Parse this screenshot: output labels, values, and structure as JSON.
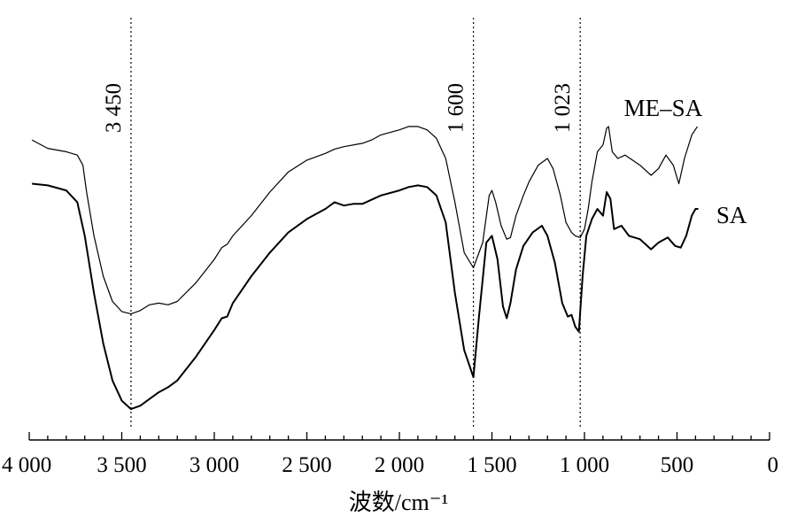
{
  "chart_data": {
    "type": "line",
    "title": "",
    "xlabel": "波数/cm⁻¹",
    "ylabel": "",
    "xlim": [
      4000,
      0
    ],
    "x_reversed": true,
    "x_ticks": [
      4000,
      3500,
      3000,
      2500,
      2000,
      1500,
      1000,
      500,
      0
    ],
    "x_tick_labels": [
      "4 000",
      "3 500",
      "3 000",
      "2 500",
      "2 000",
      "1 500",
      "1 000",
      "500",
      "0"
    ],
    "ylim": [
      0,
      100
    ],
    "y_axis_visible": false,
    "grid": false,
    "legend": "none",
    "annotations": [
      {
        "x": 3450,
        "label": "3 450"
      },
      {
        "x": 1600,
        "label": "1 600"
      },
      {
        "x": 1023,
        "label": "1 023"
      }
    ],
    "series": [
      {
        "name": "ME–SA",
        "label_anchor_x": 640,
        "points": [
          [
            3985,
            80.5
          ],
          [
            3900,
            78
          ],
          [
            3800,
            77
          ],
          [
            3740,
            76
          ],
          [
            3710,
            73
          ],
          [
            3690,
            65
          ],
          [
            3650,
            52
          ],
          [
            3600,
            40
          ],
          [
            3550,
            32.5
          ],
          [
            3500,
            29.5
          ],
          [
            3450,
            28.8
          ],
          [
            3400,
            29.8
          ],
          [
            3350,
            31.5
          ],
          [
            3300,
            32
          ],
          [
            3250,
            31.5
          ],
          [
            3200,
            32.5
          ],
          [
            3100,
            38
          ],
          [
            3000,
            45
          ],
          [
            2960,
            48.5
          ],
          [
            2930,
            49.5
          ],
          [
            2900,
            52
          ],
          [
            2800,
            58
          ],
          [
            2700,
            65
          ],
          [
            2600,
            71
          ],
          [
            2500,
            74.5
          ],
          [
            2400,
            76.5
          ],
          [
            2350,
            77.8
          ],
          [
            2300,
            78.5
          ],
          [
            2200,
            79.5
          ],
          [
            2150,
            80.5
          ],
          [
            2100,
            82
          ],
          [
            2000,
            83.5
          ],
          [
            1950,
            84.5
          ],
          [
            1900,
            84.5
          ],
          [
            1850,
            83.5
          ],
          [
            1800,
            81
          ],
          [
            1750,
            75
          ],
          [
            1700,
            62
          ],
          [
            1650,
            47
          ],
          [
            1600,
            42.5
          ],
          [
            1550,
            50
          ],
          [
            1515,
            64
          ],
          [
            1500,
            65.5
          ],
          [
            1480,
            62
          ],
          [
            1450,
            55
          ],
          [
            1420,
            51
          ],
          [
            1400,
            51.5
          ],
          [
            1370,
            58
          ],
          [
            1330,
            64
          ],
          [
            1300,
            68
          ],
          [
            1250,
            73
          ],
          [
            1200,
            75
          ],
          [
            1170,
            72
          ],
          [
            1130,
            64
          ],
          [
            1100,
            56
          ],
          [
            1070,
            53
          ],
          [
            1050,
            52
          ],
          [
            1023,
            51.5
          ],
          [
            1000,
            54
          ],
          [
            980,
            60
          ],
          [
            960,
            68
          ],
          [
            930,
            77
          ],
          [
            900,
            79
          ],
          [
            880,
            84
          ],
          [
            870,
            84.5
          ],
          [
            850,
            77
          ],
          [
            820,
            75
          ],
          [
            780,
            76
          ],
          [
            700,
            73
          ],
          [
            640,
            70
          ],
          [
            600,
            72
          ],
          [
            560,
            76
          ],
          [
            520,
            73
          ],
          [
            490,
            67.5
          ],
          [
            460,
            75
          ],
          [
            420,
            82
          ],
          [
            390,
            84.5
          ]
        ]
      },
      {
        "name": "SA",
        "label_anchor_x": 400,
        "points": [
          [
            3985,
            67.5
          ],
          [
            3900,
            67
          ],
          [
            3800,
            65.5
          ],
          [
            3740,
            62
          ],
          [
            3700,
            52
          ],
          [
            3650,
            35
          ],
          [
            3600,
            20
          ],
          [
            3550,
            9
          ],
          [
            3500,
            3
          ],
          [
            3450,
            0.5
          ],
          [
            3400,
            1.5
          ],
          [
            3350,
            3.5
          ],
          [
            3300,
            5.5
          ],
          [
            3250,
            7
          ],
          [
            3200,
            9
          ],
          [
            3100,
            16
          ],
          [
            3000,
            24
          ],
          [
            2960,
            27.5
          ],
          [
            2930,
            28
          ],
          [
            2900,
            32
          ],
          [
            2800,
            40
          ],
          [
            2700,
            47
          ],
          [
            2600,
            53
          ],
          [
            2500,
            57
          ],
          [
            2400,
            60
          ],
          [
            2350,
            62
          ],
          [
            2300,
            61
          ],
          [
            2250,
            61.5
          ],
          [
            2200,
            61.5
          ],
          [
            2100,
            64
          ],
          [
            2000,
            65.5
          ],
          [
            1950,
            66.5
          ],
          [
            1900,
            67
          ],
          [
            1850,
            66.5
          ],
          [
            1800,
            64
          ],
          [
            1750,
            56
          ],
          [
            1700,
            35
          ],
          [
            1650,
            18
          ],
          [
            1600,
            10
          ],
          [
            1570,
            28
          ],
          [
            1530,
            50
          ],
          [
            1500,
            52
          ],
          [
            1470,
            45
          ],
          [
            1440,
            31
          ],
          [
            1420,
            27.5
          ],
          [
            1400,
            32
          ],
          [
            1370,
            42
          ],
          [
            1330,
            49
          ],
          [
            1280,
            53
          ],
          [
            1230,
            55
          ],
          [
            1200,
            52
          ],
          [
            1160,
            44
          ],
          [
            1120,
            32
          ],
          [
            1090,
            28
          ],
          [
            1070,
            28.5
          ],
          [
            1050,
            25
          ],
          [
            1030,
            23.5
          ],
          [
            1010,
            40
          ],
          [
            990,
            52
          ],
          [
            960,
            57
          ],
          [
            930,
            60
          ],
          [
            900,
            58
          ],
          [
            880,
            65
          ],
          [
            860,
            63
          ],
          [
            840,
            54
          ],
          [
            800,
            55
          ],
          [
            760,
            52
          ],
          [
            700,
            51
          ],
          [
            640,
            48
          ],
          [
            600,
            50
          ],
          [
            550,
            51.5
          ],
          [
            510,
            49
          ],
          [
            480,
            48.5
          ],
          [
            450,
            52
          ],
          [
            420,
            58
          ],
          [
            400,
            60
          ],
          [
            385,
            60
          ]
        ]
      }
    ]
  }
}
